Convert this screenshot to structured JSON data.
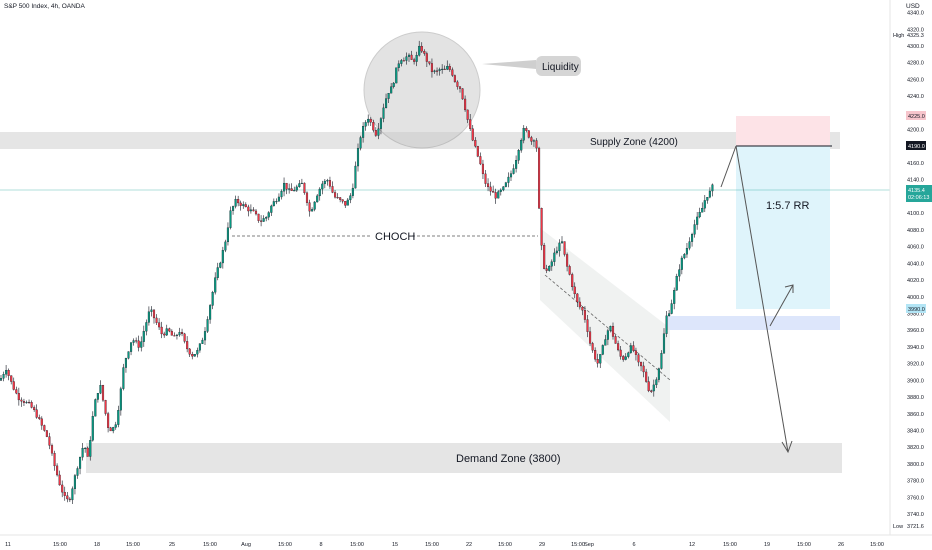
{
  "header": {
    "title": "S&P 500 Index, 4h, OANDA",
    "currency": "USD"
  },
  "chart_data": {
    "type": "candlestick",
    "ylim": [
      3715,
      4355
    ],
    "y_ticks": [
      3740,
      3760,
      3780,
      3800,
      3820,
      3840,
      3860,
      3880,
      3900,
      3920,
      3940,
      3960,
      3980,
      4000,
      4020,
      4040,
      4060,
      4080,
      4100,
      4120,
      4140,
      4160,
      4180,
      4200,
      4220,
      4240,
      4260,
      4280,
      4300,
      4320,
      4340
    ],
    "x_labels": [
      "11",
      "15:00",
      "18",
      "15:00",
      "25",
      "15:00",
      "Aug",
      "15:00",
      "8",
      "15:00",
      "15",
      "15:00",
      "22",
      "15:00",
      "29",
      "15:00",
      "Sep",
      "6",
      "12",
      "15:00",
      "19",
      "15:00",
      "26",
      "15:00"
    ],
    "price_path": [
      [
        0,
        3900
      ],
      [
        6,
        3915
      ],
      [
        12,
        3895
      ],
      [
        18,
        3880
      ],
      [
        24,
        3875
      ],
      [
        30,
        3870
      ],
      [
        36,
        3860
      ],
      [
        42,
        3845
      ],
      [
        48,
        3830
      ],
      [
        54,
        3800
      ],
      [
        60,
        3775
      ],
      [
        66,
        3755
      ],
      [
        70,
        3760
      ],
      [
        74,
        3780
      ],
      [
        78,
        3800
      ],
      [
        84,
        3825
      ],
      [
        88,
        3805
      ],
      [
        92,
        3850
      ],
      [
        96,
        3880
      ],
      [
        100,
        3895
      ],
      [
        104,
        3870
      ],
      [
        108,
        3845
      ],
      [
        112,
        3840
      ],
      [
        116,
        3850
      ],
      [
        120,
        3880
      ],
      [
        124,
        3920
      ],
      [
        128,
        3935
      ],
      [
        132,
        3950
      ],
      [
        136,
        3945
      ],
      [
        140,
        3940
      ],
      [
        144,
        3960
      ],
      [
        150,
        3985
      ],
      [
        156,
        3970
      ],
      [
        162,
        3955
      ],
      [
        168,
        3960
      ],
      [
        174,
        3950
      ],
      [
        180,
        3960
      ],
      [
        186,
        3940
      ],
      [
        192,
        3930
      ],
      [
        198,
        3935
      ],
      [
        204,
        3955
      ],
      [
        210,
        3990
      ],
      [
        216,
        4025
      ],
      [
        222,
        4050
      ],
      [
        226,
        4070
      ],
      [
        230,
        4100
      ],
      [
        236,
        4115
      ],
      [
        242,
        4110
      ],
      [
        248,
        4105
      ],
      [
        254,
        4100
      ],
      [
        260,
        4090
      ],
      [
        266,
        4095
      ],
      [
        272,
        4110
      ],
      [
        278,
        4120
      ],
      [
        284,
        4135
      ],
      [
        290,
        4125
      ],
      [
        296,
        4130
      ],
      [
        302,
        4135
      ],
      [
        306,
        4120
      ],
      [
        310,
        4100
      ],
      [
        316,
        4120
      ],
      [
        322,
        4135
      ],
      [
        328,
        4140
      ],
      [
        334,
        4120
      ],
      [
        340,
        4115
      ],
      [
        346,
        4110
      ],
      [
        352,
        4125
      ],
      [
        356,
        4160
      ],
      [
        360,
        4190
      ],
      [
        364,
        4205
      ],
      [
        368,
        4215
      ],
      [
        372,
        4205
      ],
      [
        376,
        4195
      ],
      [
        380,
        4210
      ],
      [
        384,
        4230
      ],
      [
        388,
        4245
      ],
      [
        392,
        4250
      ],
      [
        396,
        4270
      ],
      [
        400,
        4285
      ],
      [
        404,
        4285
      ],
      [
        408,
        4288
      ],
      [
        412,
        4282
      ],
      [
        416,
        4285
      ],
      [
        420,
        4300
      ],
      [
        424,
        4290
      ],
      [
        428,
        4280
      ],
      [
        432,
        4270
      ],
      [
        436,
        4268
      ],
      [
        440,
        4272
      ],
      [
        444,
        4270
      ],
      [
        448,
        4275
      ],
      [
        452,
        4268
      ],
      [
        456,
        4255
      ],
      [
        460,
        4250
      ],
      [
        464,
        4232
      ],
      [
        468,
        4210
      ],
      [
        472,
        4190
      ],
      [
        476,
        4175
      ],
      [
        480,
        4160
      ],
      [
        484,
        4140
      ],
      [
        488,
        4130
      ],
      [
        492,
        4125
      ],
      [
        496,
        4120
      ],
      [
        500,
        4125
      ],
      [
        504,
        4130
      ],
      [
        508,
        4140
      ],
      [
        512,
        4150
      ],
      [
        516,
        4165
      ],
      [
        520,
        4185
      ],
      [
        524,
        4200
      ],
      [
        528,
        4195
      ],
      [
        532,
        4185
      ],
      [
        536,
        4195
      ],
      [
        538,
        4130
      ],
      [
        540,
        4080
      ],
      [
        543,
        4040
      ],
      [
        546,
        4030
      ],
      [
        550,
        4035
      ],
      [
        554,
        4050
      ],
      [
        558,
        4060
      ],
      [
        562,
        4065
      ],
      [
        566,
        4040
      ],
      [
        570,
        4025
      ],
      [
        574,
        4005
      ],
      [
        578,
        3990
      ],
      [
        582,
        3985
      ],
      [
        586,
        3970
      ],
      [
        590,
        3945
      ],
      [
        594,
        3930
      ],
      [
        598,
        3920
      ],
      [
        602,
        3935
      ],
      [
        606,
        3955
      ],
      [
        610,
        3965
      ],
      [
        614,
        3950
      ],
      [
        618,
        3935
      ],
      [
        622,
        3925
      ],
      [
        626,
        3930
      ],
      [
        630,
        3940
      ],
      [
        634,
        3935
      ],
      [
        638,
        3920
      ],
      [
        642,
        3915
      ],
      [
        646,
        3900
      ],
      [
        650,
        3885
      ],
      [
        654,
        3895
      ],
      [
        658,
        3910
      ],
      [
        662,
        3935
      ],
      [
        666,
        3975
      ],
      [
        670,
        3985
      ],
      [
        674,
        4005
      ],
      [
        678,
        4030
      ],
      [
        682,
        4045
      ],
      [
        686,
        4055
      ],
      [
        690,
        4070
      ],
      [
        694,
        4085
      ],
      [
        698,
        4095
      ],
      [
        702,
        4105
      ],
      [
        706,
        4120
      ],
      [
        710,
        4125
      ],
      [
        714,
        4135
      ]
    ],
    "annotations": {
      "supply_zone": {
        "label": "Supply Zone (4200)",
        "from": 4184,
        "to": 4205
      },
      "demand_zone": {
        "label": "Demand Zone (3800)",
        "from": 3787,
        "to": 3825
      },
      "blue_zone": {
        "from": 3962,
        "to": 3980
      },
      "choch": {
        "label": "CHOCH",
        "level": 4082
      },
      "liquidity": {
        "label": "Liquidity"
      },
      "position": {
        "label": "1:5.7 RR",
        "entry": 4190,
        "stop": 4225,
        "target": 3990
      }
    },
    "price_labels": {
      "high": {
        "tag": "High",
        "value": "4325.3"
      },
      "low": {
        "tag": "Low",
        "value": "3721.6"
      },
      "stop": "4225.0",
      "entry": "4190.0",
      "current": "4135.4",
      "countdown": "02:06:13",
      "target": "3990.0"
    },
    "colors": {
      "up": "#089981",
      "down": "#f23645",
      "zone_gray": "#e0e0e0",
      "profit": "#dff4fb",
      "loss": "#fde3e7",
      "blue_zone": "#dde6fb",
      "current_line": "#26a69a"
    },
    "grid": false
  }
}
